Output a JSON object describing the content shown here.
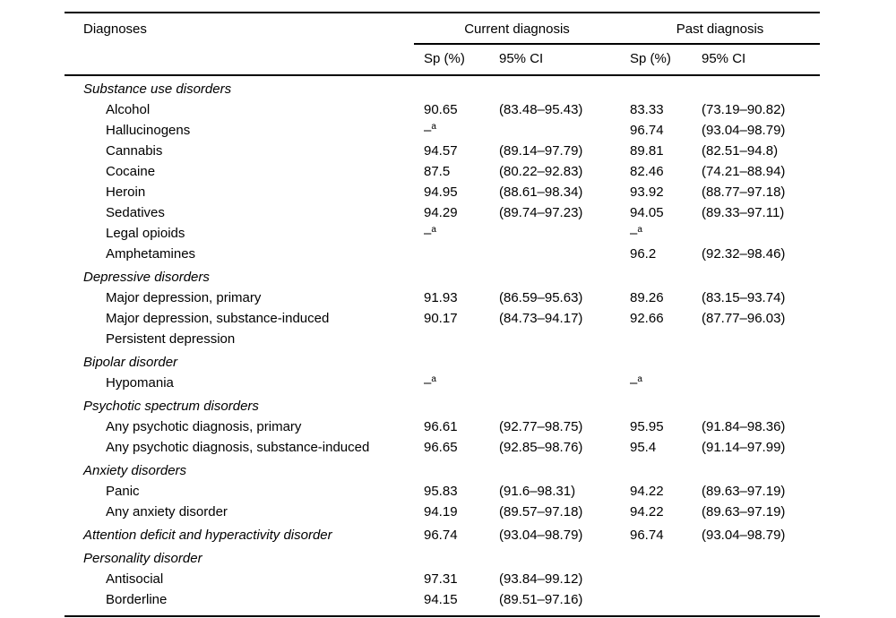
{
  "table": {
    "title_col": "Diagnoses",
    "groups": [
      {
        "label": "Current diagnosis"
      },
      {
        "label": "Past diagnosis"
      }
    ],
    "subheaders": [
      "Sp (%)",
      "95% CI",
      "Sp (%)",
      "95% CI"
    ],
    "footnote_marker": "a",
    "rows": [
      {
        "label": "Substance use disorders",
        "indent": 0,
        "italic": true,
        "section": true,
        "values": [
          "",
          "",
          "",
          ""
        ]
      },
      {
        "label": "Alcohol",
        "indent": 1,
        "italic": false,
        "values": [
          "90.65",
          "(83.48–95.43)",
          "83.33",
          "(73.19–90.82)"
        ]
      },
      {
        "label": "Hallucinogens",
        "indent": 1,
        "italic": false,
        "values": [
          "–^a",
          "",
          "96.74",
          "(93.04–98.79)"
        ]
      },
      {
        "label": "Cannabis",
        "indent": 1,
        "italic": false,
        "values": [
          "94.57",
          "(89.14–97.79)",
          "89.81",
          "(82.51–94.8)"
        ]
      },
      {
        "label": "Cocaine",
        "indent": 1,
        "italic": false,
        "values": [
          "87.5",
          "(80.22–92.83)",
          "82.46",
          "(74.21–88.94)"
        ]
      },
      {
        "label": "Heroin",
        "indent": 1,
        "italic": false,
        "values": [
          "94.95",
          "(88.61–98.34)",
          "93.92",
          "(88.77–97.18)"
        ]
      },
      {
        "label": "Sedatives",
        "indent": 1,
        "italic": false,
        "values": [
          "94.29",
          "(89.74–97.23)",
          "94.05",
          "(89.33–97.11)"
        ]
      },
      {
        "label": "Legal opioids",
        "indent": 1,
        "italic": false,
        "values": [
          "–^a",
          "",
          "–^a",
          ""
        ]
      },
      {
        "label": "Amphetamines",
        "indent": 1,
        "italic": false,
        "values": [
          "",
          "",
          "96.2",
          "(92.32–98.46)"
        ]
      },
      {
        "label": "Depressive disorders",
        "indent": 0,
        "italic": true,
        "section": true,
        "values": [
          "",
          "",
          "",
          ""
        ]
      },
      {
        "label": "Major depression, primary",
        "indent": 1,
        "italic": false,
        "values": [
          "91.93",
          "(86.59–95.63)",
          "89.26",
          "(83.15–93.74)"
        ]
      },
      {
        "label": "Major depression, substance-induced",
        "indent": 1,
        "italic": false,
        "values": [
          "90.17",
          "(84.73–94.17)",
          "92.66",
          "(87.77–96.03)"
        ]
      },
      {
        "label": "Persistent depression",
        "indent": 1,
        "italic": false,
        "values": [
          "",
          "",
          "",
          ""
        ]
      },
      {
        "label": "Bipolar disorder",
        "indent": 0,
        "italic": true,
        "section": true,
        "values": [
          "",
          "",
          "",
          ""
        ]
      },
      {
        "label": "Hypomania",
        "indent": 1,
        "italic": false,
        "values": [
          "–^a",
          "",
          "–^a",
          ""
        ]
      },
      {
        "label": "Psychotic spectrum disorders",
        "indent": 0,
        "italic": true,
        "section": true,
        "values": [
          "",
          "",
          "",
          ""
        ]
      },
      {
        "label": "Any psychotic diagnosis, primary",
        "indent": 1,
        "italic": false,
        "values": [
          "96.61",
          "(92.77–98.75)",
          "95.95",
          "(91.84–98.36)"
        ]
      },
      {
        "label": "Any psychotic diagnosis, substance-induced",
        "indent": 1,
        "italic": false,
        "values": [
          "96.65",
          "(92.85–98.76)",
          "95.4",
          "(91.14–97.99)"
        ]
      },
      {
        "label": "Anxiety disorders",
        "indent": 0,
        "italic": true,
        "section": true,
        "values": [
          "",
          "",
          "",
          ""
        ]
      },
      {
        "label": "Panic",
        "indent": 1,
        "italic": false,
        "values": [
          "95.83",
          "(91.6–98.31)",
          "94.22",
          "(89.63–97.19)"
        ]
      },
      {
        "label": "Any anxiety disorder",
        "indent": 1,
        "italic": false,
        "values": [
          "94.19",
          "(89.57–97.18)",
          "94.22",
          "(89.63–97.19)"
        ]
      },
      {
        "label": "Attention deficit and hyperactivity disorder",
        "indent": 0,
        "italic": true,
        "section": true,
        "values": [
          "96.74",
          "(93.04–98.79)",
          "96.74",
          "(93.04–98.79)"
        ]
      },
      {
        "label": "Personality disorder",
        "indent": 0,
        "italic": true,
        "section": true,
        "values": [
          "",
          "",
          "",
          ""
        ]
      },
      {
        "label": "Antisocial",
        "indent": 1,
        "italic": false,
        "values": [
          "97.31",
          "(93.84–99.12)",
          "",
          ""
        ]
      },
      {
        "label": "Borderline",
        "indent": 1,
        "italic": false,
        "values": [
          "94.15",
          "(89.51–97.16)",
          "",
          ""
        ]
      }
    ]
  }
}
